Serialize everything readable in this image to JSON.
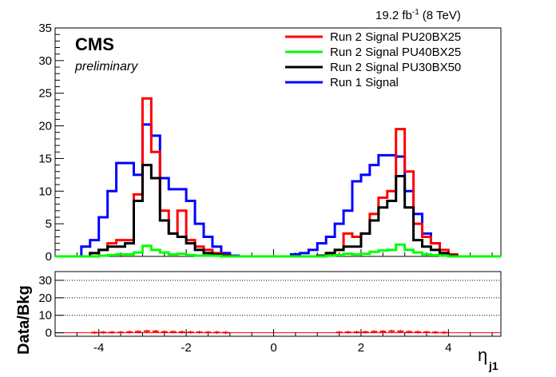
{
  "header": {
    "lumi_value": "19.2 fb",
    "lumi_exp": "-1",
    "lumi_energy": "(8 TeV)",
    "experiment": "CMS",
    "status": "preliminary"
  },
  "colors": {
    "pu20bx25": "#ff0000",
    "pu40bx25": "#00ff00",
    "pu30bx50": "#000000",
    "run1": "#0000ff",
    "ratio": "#ff0000"
  },
  "chart_data": [
    {
      "type": "line",
      "style": "step-histogram",
      "xlim": [
        -5,
        5.2
      ],
      "ylim": [
        0,
        35
      ],
      "x_ticks": [
        -4,
        -2,
        0,
        2,
        4
      ],
      "y_ticks": [
        0,
        5,
        10,
        15,
        20,
        25,
        30,
        35
      ],
      "bin_edges": [
        -4.8,
        -4.6,
        -4.4,
        -4.2,
        -4.0,
        -3.8,
        -3.6,
        -3.4,
        -3.2,
        -3.0,
        -2.8,
        -2.6,
        -2.4,
        -2.2,
        -2.0,
        -1.8,
        -1.6,
        -1.4,
        -1.2,
        -1.0,
        -0.8,
        -0.6,
        -0.4,
        -0.2,
        0.0,
        0.2,
        0.4,
        0.6,
        0.8,
        1.0,
        1.2,
        1.4,
        1.6,
        1.8,
        2.0,
        2.2,
        2.4,
        2.6,
        2.8,
        3.0,
        3.2,
        3.4,
        3.6,
        3.8,
        4.0,
        4.2,
        4.4,
        4.6,
        4.8
      ],
      "legend_position": "top-right",
      "series": [
        {
          "name": "Run 2 Signal PU20BX25",
          "color_key": "pu20bx25",
          "values": [
            0,
            0,
            0,
            0.5,
            1.0,
            2.0,
            2.5,
            2.5,
            9.5,
            24.2,
            16.0,
            7.0,
            3.5,
            7.0,
            2.5,
            1.5,
            1.0,
            0.5,
            0.2,
            0,
            0,
            0,
            0,
            0,
            0,
            0,
            0,
            0,
            0,
            0.1,
            0.5,
            1.0,
            3.5,
            3.0,
            3.5,
            6.5,
            9.0,
            10.0,
            19.5,
            13.0,
            5.0,
            3.0,
            2.0,
            1.0,
            0.3,
            0,
            0,
            0
          ]
        },
        {
          "name": "Run 2 Signal PU40BX25",
          "color_key": "pu40bx25",
          "values": [
            0,
            0,
            0,
            0,
            0.1,
            0.2,
            0.3,
            0.3,
            0.6,
            1.6,
            1.0,
            0.6,
            0.3,
            0.4,
            0.2,
            0.1,
            0.1,
            0.1,
            0,
            0,
            0,
            0,
            0,
            0,
            0,
            0,
            0,
            0,
            0,
            0,
            0.1,
            0.2,
            0.4,
            0.3,
            0.4,
            0.7,
            0.9,
            1.0,
            1.8,
            1.0,
            0.6,
            0.3,
            0.2,
            0.1,
            0,
            0,
            0,
            0
          ]
        },
        {
          "name": "Run 2 Signal PU30BX50",
          "color_key": "pu30bx50",
          "values": [
            0,
            0,
            0,
            0.5,
            1.0,
            1.5,
            1.5,
            2.0,
            8.5,
            14.0,
            12.0,
            5.5,
            3.5,
            3.0,
            2.0,
            1.0,
            0.5,
            0.3,
            0.1,
            0,
            0,
            0,
            0,
            0,
            0,
            0,
            0,
            0,
            0,
            0.1,
            0.5,
            1.0,
            1.5,
            1.5,
            3.5,
            5.5,
            7.5,
            8.5,
            12.3,
            7.5,
            2.5,
            1.5,
            1.0,
            0.5,
            0.1,
            0,
            0,
            0
          ]
        },
        {
          "name": "Run 1 Signal",
          "color_key": "run1",
          "values": [
            0,
            0,
            1.5,
            2.5,
            6.0,
            10.0,
            14.3,
            14.3,
            12.5,
            20.2,
            18.5,
            12.0,
            10.3,
            10.3,
            8.5,
            5.0,
            3.0,
            1.5,
            0.5,
            0.1,
            0,
            0,
            0,
            0,
            0,
            0,
            0.3,
            0.5,
            1.0,
            2.0,
            3.0,
            5.0,
            7.0,
            11.5,
            12.5,
            14.0,
            15.5,
            15.5,
            15.3,
            10.0,
            6.5,
            3.5,
            2.0,
            0.5,
            0.1,
            0,
            0,
            0
          ]
        }
      ]
    },
    {
      "type": "scatter",
      "ylabel": "Data/Bkg",
      "xlabel": "η",
      "xlabel_sub": "j1",
      "xlim": [
        -5,
        5.2
      ],
      "ylim": [
        -2,
        35
      ],
      "x_ticks": [
        -4,
        -2,
        0,
        2,
        4
      ],
      "y_ticks": [
        0,
        10,
        20,
        30
      ],
      "grid_y": [
        10,
        20,
        30
      ],
      "reference_line_y": 0,
      "x": [
        -4.1,
        -3.9,
        -3.7,
        -3.5,
        -3.3,
        -3.1,
        -2.9,
        -2.7,
        -2.5,
        -2.3,
        -2.1,
        -1.9,
        -1.7,
        -1.5,
        -1.3,
        -1.1,
        1.5,
        1.7,
        1.9,
        2.1,
        2.3,
        2.5,
        2.7,
        2.9,
        3.1,
        3.3,
        3.5,
        3.7,
        3.9
      ],
      "y": [
        0.1,
        0.2,
        0.2,
        0.2,
        0.4,
        0.6,
        0.9,
        0.8,
        0.5,
        0.5,
        0.4,
        0.3,
        0.3,
        0.2,
        0.2,
        0.1,
        0.2,
        0.3,
        0.3,
        0.4,
        0.6,
        0.7,
        0.9,
        0.8,
        0.5,
        0.4,
        0.3,
        0.2,
        0.1
      ]
    }
  ]
}
